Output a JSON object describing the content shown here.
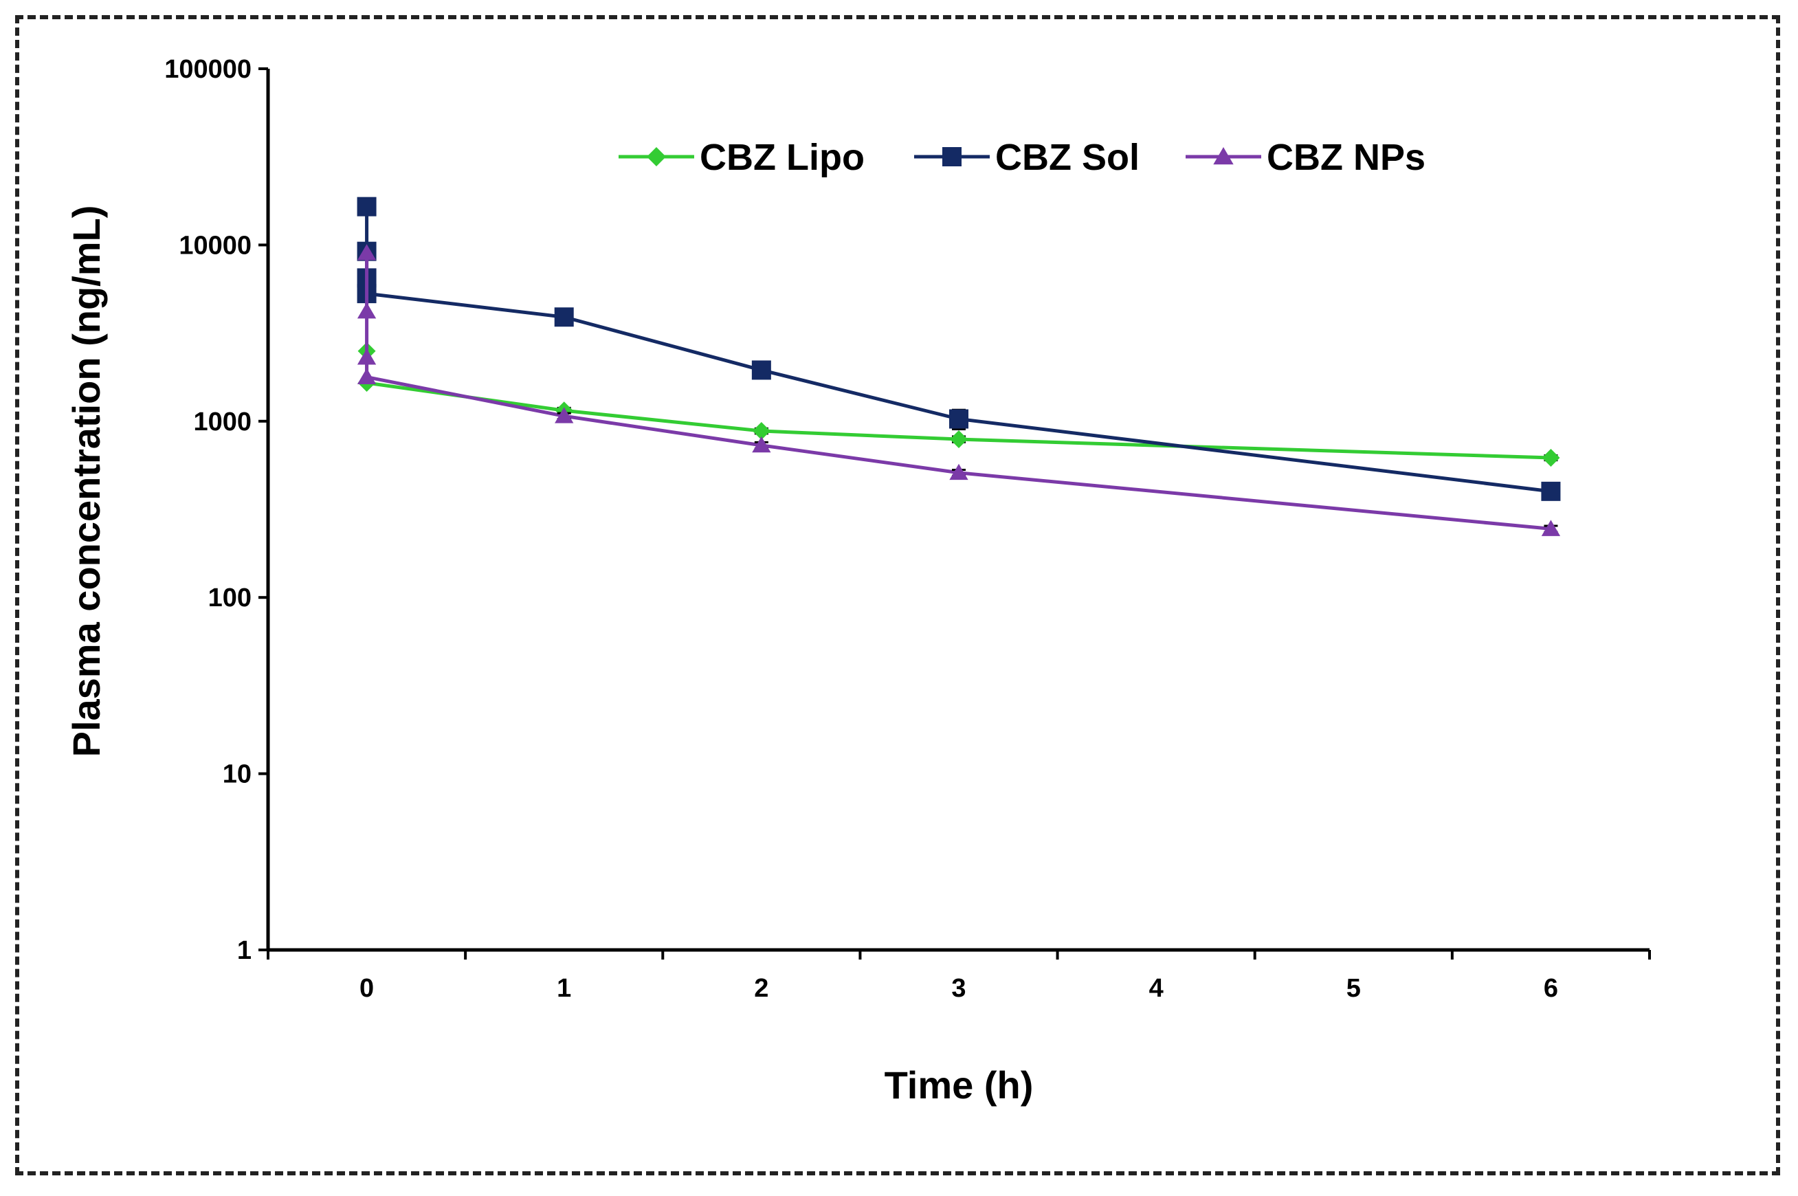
{
  "chart_data": {
    "type": "line",
    "title": "",
    "xlabel": "Time (h)",
    "ylabel": "Plasma concentration (ng/mL)",
    "yscale": "log",
    "xlim": [
      -0.5,
      6.5
    ],
    "ylim": [
      1,
      100000
    ],
    "x_ticks": [
      "0",
      "1",
      "2",
      "3",
      "4",
      "5",
      "6"
    ],
    "y_ticks": [
      "1",
      "10",
      "100",
      "1000",
      "10000",
      "100000"
    ],
    "grid": false,
    "legend_position": "top-center",
    "series": [
      {
        "name": "CBZ Lipo",
        "color": "#33cc33",
        "marker": "diamond",
        "x": [
          0,
          0,
          1,
          2,
          3,
          6
        ],
        "y": [
          2500,
          1650,
          1150,
          880,
          790,
          620
        ],
        "err": [
          0,
          0,
          40,
          30,
          30,
          20
        ]
      },
      {
        "name": "CBZ Sol",
        "color": "#142a64",
        "marker": "square",
        "x": [
          0,
          0,
          0,
          0,
          1,
          2,
          3,
          6
        ],
        "y": [
          16500,
          9200,
          6500,
          5300,
          3900,
          1950,
          1030,
          400
        ],
        "err": [
          0,
          0,
          0,
          0,
          400,
          200,
          130,
          20
        ]
      },
      {
        "name": "CBZ NPs",
        "color": "#7b3aa8",
        "marker": "triangle",
        "x": [
          0,
          0,
          0,
          0,
          1,
          2,
          3,
          6
        ],
        "y": [
          9000,
          4200,
          2300,
          1780,
          1070,
          730,
          510,
          245
        ],
        "err": [
          0,
          0,
          0,
          0,
          40,
          30,
          20,
          10
        ]
      }
    ]
  }
}
